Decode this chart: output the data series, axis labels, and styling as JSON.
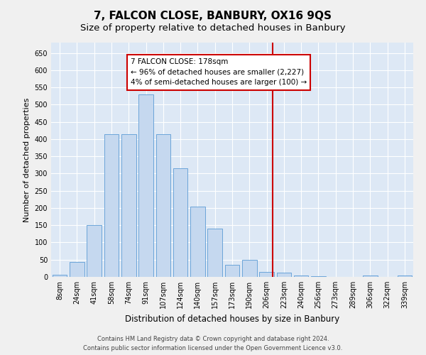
{
  "title": "7, FALCON CLOSE, BANBURY, OX16 9QS",
  "subtitle": "Size of property relative to detached houses in Banbury",
  "xlabel": "Distribution of detached houses by size in Banbury",
  "ylabel": "Number of detached properties",
  "categories": [
    "8sqm",
    "24sqm",
    "41sqm",
    "58sqm",
    "74sqm",
    "91sqm",
    "107sqm",
    "124sqm",
    "140sqm",
    "157sqm",
    "173sqm",
    "190sqm",
    "206sqm",
    "223sqm",
    "240sqm",
    "256sqm",
    "273sqm",
    "289sqm",
    "306sqm",
    "322sqm",
    "339sqm"
  ],
  "values": [
    7,
    44,
    150,
    415,
    415,
    530,
    415,
    315,
    205,
    140,
    35,
    50,
    14,
    12,
    5,
    2,
    1,
    1,
    5,
    1,
    5
  ],
  "bar_color": "#c5d8ef",
  "bar_edge_color": "#5b9bd5",
  "bar_width": 0.85,
  "vline_index": 12.35,
  "vline_color": "#cc0000",
  "annotation_text": "7 FALCON CLOSE: 178sqm\n← 96% of detached houses are smaller (2,227)\n4% of semi-detached houses are larger (100) →",
  "annotation_box_facecolor": "#ffffff",
  "annotation_box_edgecolor": "#cc0000",
  "ylim": [
    0,
    680
  ],
  "yticks": [
    0,
    50,
    100,
    150,
    200,
    250,
    300,
    350,
    400,
    450,
    500,
    550,
    600,
    650
  ],
  "fig_bg_color": "#f0f0f0",
  "ax_bg_color": "#dde8f5",
  "grid_color": "#ffffff",
  "footer": "Contains HM Land Registry data © Crown copyright and database right 2024.\nContains public sector information licensed under the Open Government Licence v3.0.",
  "title_fontsize": 11,
  "subtitle_fontsize": 9.5,
  "xlabel_fontsize": 8.5,
  "ylabel_fontsize": 8,
  "tick_fontsize": 7,
  "footer_fontsize": 6,
  "annot_fontsize": 7.5
}
